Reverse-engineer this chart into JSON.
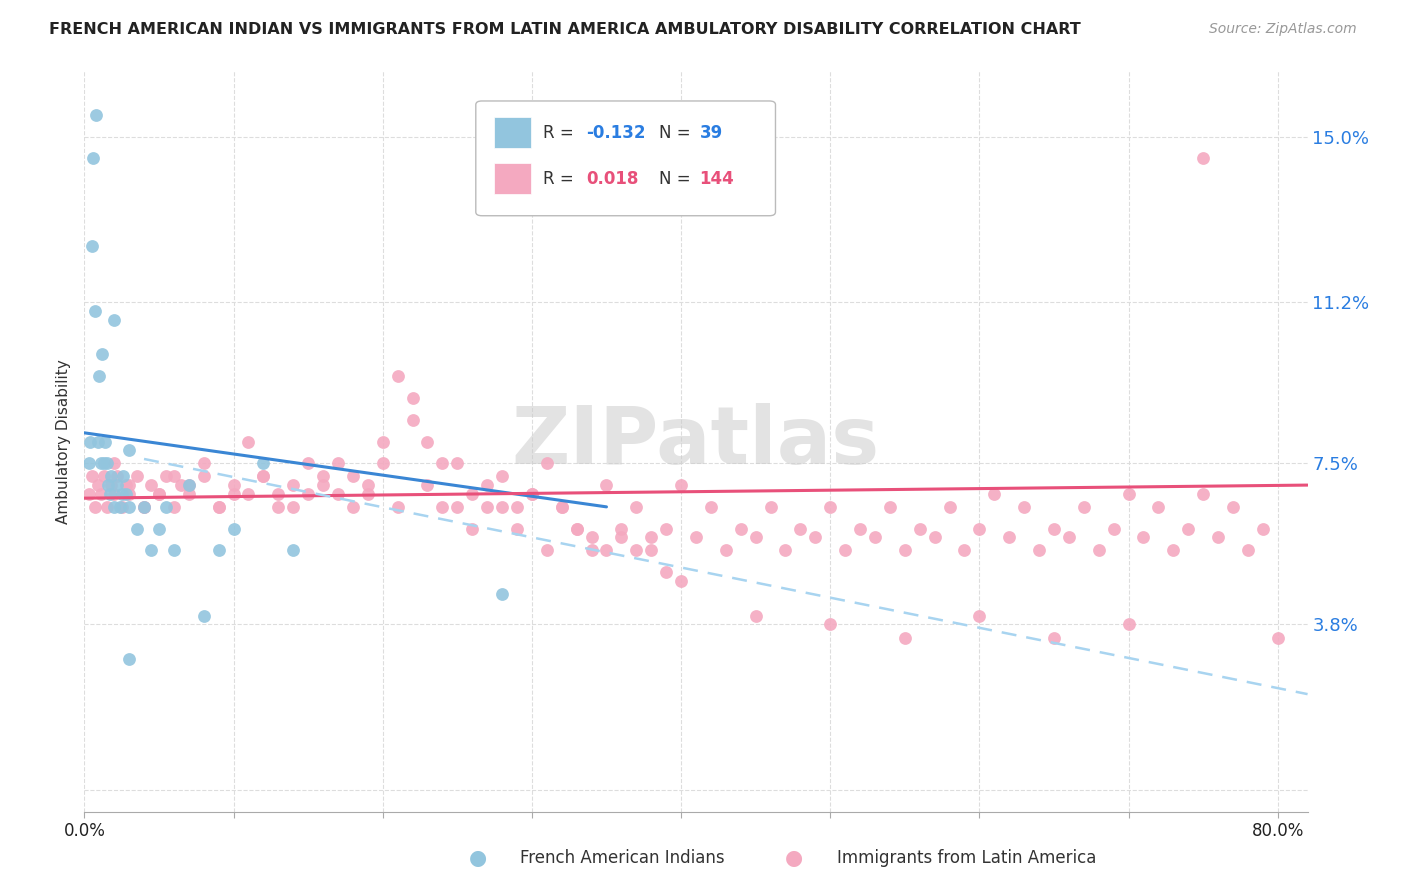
{
  "title": "FRENCH AMERICAN INDIAN VS IMMIGRANTS FROM LATIN AMERICA AMBULATORY DISABILITY CORRELATION CHART",
  "source": "Source: ZipAtlas.com",
  "ylabel": "Ambulatory Disability",
  "color_blue": "#92c5de",
  "color_pink": "#f4a9c0",
  "color_blue_line": "#3a86d4",
  "color_pink_line": "#e8507a",
  "color_dash_line": "#a8d4f0",
  "watermark": "ZIPatlas",
  "xlim": [
    0.0,
    0.82
  ],
  "ylim": [
    -0.005,
    0.165
  ],
  "ytick_vals": [
    0.0,
    0.038,
    0.075,
    0.112,
    0.15
  ],
  "ytick_labels": [
    "",
    "3.8%",
    "7.5%",
    "11.2%",
    "15.0%"
  ],
  "blue_line_x": [
    0.0,
    0.35
  ],
  "blue_line_y": [
    0.082,
    0.065
  ],
  "pink_line_x": [
    0.0,
    0.82
  ],
  "pink_line_y": [
    0.067,
    0.07
  ],
  "dash_line_x": [
    0.04,
    0.82
  ],
  "dash_line_y": [
    0.076,
    0.022
  ],
  "blue_x": [
    0.003,
    0.004,
    0.005,
    0.006,
    0.007,
    0.008,
    0.009,
    0.01,
    0.011,
    0.012,
    0.013,
    0.014,
    0.015,
    0.016,
    0.017,
    0.018,
    0.02,
    0.022,
    0.024,
    0.026,
    0.028,
    0.03,
    0.035,
    0.04,
    0.045,
    0.05,
    0.055,
    0.06,
    0.07,
    0.08,
    0.09,
    0.1,
    0.12,
    0.14,
    0.02,
    0.025,
    0.03,
    0.28,
    0.03
  ],
  "blue_y": [
    0.075,
    0.08,
    0.125,
    0.145,
    0.11,
    0.155,
    0.08,
    0.095,
    0.075,
    0.1,
    0.075,
    0.08,
    0.075,
    0.07,
    0.068,
    0.072,
    0.065,
    0.07,
    0.065,
    0.072,
    0.068,
    0.065,
    0.06,
    0.065,
    0.055,
    0.06,
    0.065,
    0.055,
    0.07,
    0.04,
    0.055,
    0.06,
    0.075,
    0.055,
    0.108,
    0.068,
    0.078,
    0.045,
    0.03
  ],
  "pink_x": [
    0.003,
    0.005,
    0.007,
    0.009,
    0.011,
    0.013,
    0.015,
    0.018,
    0.02,
    0.022,
    0.025,
    0.028,
    0.03,
    0.035,
    0.04,
    0.045,
    0.05,
    0.055,
    0.06,
    0.065,
    0.07,
    0.08,
    0.09,
    0.1,
    0.11,
    0.12,
    0.13,
    0.14,
    0.15,
    0.16,
    0.17,
    0.18,
    0.19,
    0.2,
    0.21,
    0.22,
    0.23,
    0.24,
    0.25,
    0.26,
    0.27,
    0.28,
    0.29,
    0.3,
    0.31,
    0.32,
    0.33,
    0.34,
    0.35,
    0.36,
    0.37,
    0.38,
    0.39,
    0.4,
    0.41,
    0.42,
    0.43,
    0.44,
    0.45,
    0.46,
    0.47,
    0.48,
    0.49,
    0.5,
    0.51,
    0.52,
    0.53,
    0.54,
    0.55,
    0.56,
    0.57,
    0.58,
    0.59,
    0.6,
    0.61,
    0.62,
    0.63,
    0.64,
    0.65,
    0.66,
    0.67,
    0.68,
    0.69,
    0.7,
    0.71,
    0.72,
    0.73,
    0.74,
    0.75,
    0.76,
    0.77,
    0.78,
    0.79,
    0.02,
    0.03,
    0.04,
    0.05,
    0.06,
    0.07,
    0.08,
    0.09,
    0.1,
    0.11,
    0.12,
    0.13,
    0.14,
    0.15,
    0.16,
    0.17,
    0.18,
    0.19,
    0.2,
    0.21,
    0.22,
    0.23,
    0.24,
    0.25,
    0.26,
    0.27,
    0.28,
    0.29,
    0.3,
    0.31,
    0.32,
    0.33,
    0.34,
    0.35,
    0.36,
    0.37,
    0.38,
    0.39,
    0.4,
    0.45,
    0.5,
    0.55,
    0.6,
    0.65,
    0.7,
    0.75,
    0.8
  ],
  "pink_y": [
    0.068,
    0.072,
    0.065,
    0.07,
    0.068,
    0.072,
    0.065,
    0.07,
    0.068,
    0.072,
    0.065,
    0.07,
    0.068,
    0.072,
    0.065,
    0.07,
    0.068,
    0.072,
    0.065,
    0.07,
    0.068,
    0.072,
    0.065,
    0.07,
    0.068,
    0.072,
    0.065,
    0.07,
    0.068,
    0.072,
    0.075,
    0.065,
    0.07,
    0.075,
    0.065,
    0.09,
    0.07,
    0.065,
    0.075,
    0.06,
    0.07,
    0.065,
    0.06,
    0.068,
    0.055,
    0.065,
    0.06,
    0.055,
    0.07,
    0.058,
    0.065,
    0.055,
    0.06,
    0.07,
    0.058,
    0.065,
    0.055,
    0.06,
    0.058,
    0.065,
    0.055,
    0.06,
    0.058,
    0.065,
    0.055,
    0.06,
    0.058,
    0.065,
    0.055,
    0.06,
    0.058,
    0.065,
    0.055,
    0.06,
    0.068,
    0.058,
    0.065,
    0.055,
    0.06,
    0.058,
    0.065,
    0.055,
    0.06,
    0.068,
    0.058,
    0.065,
    0.055,
    0.06,
    0.068,
    0.058,
    0.065,
    0.055,
    0.06,
    0.075,
    0.07,
    0.065,
    0.068,
    0.072,
    0.07,
    0.075,
    0.065,
    0.068,
    0.08,
    0.072,
    0.068,
    0.065,
    0.075,
    0.07,
    0.068,
    0.072,
    0.068,
    0.08,
    0.095,
    0.085,
    0.08,
    0.075,
    0.065,
    0.068,
    0.065,
    0.072,
    0.065,
    0.068,
    0.075,
    0.065,
    0.06,
    0.058,
    0.055,
    0.06,
    0.055,
    0.058,
    0.05,
    0.048,
    0.04,
    0.038,
    0.035,
    0.04,
    0.035,
    0.038,
    0.145,
    0.035
  ]
}
